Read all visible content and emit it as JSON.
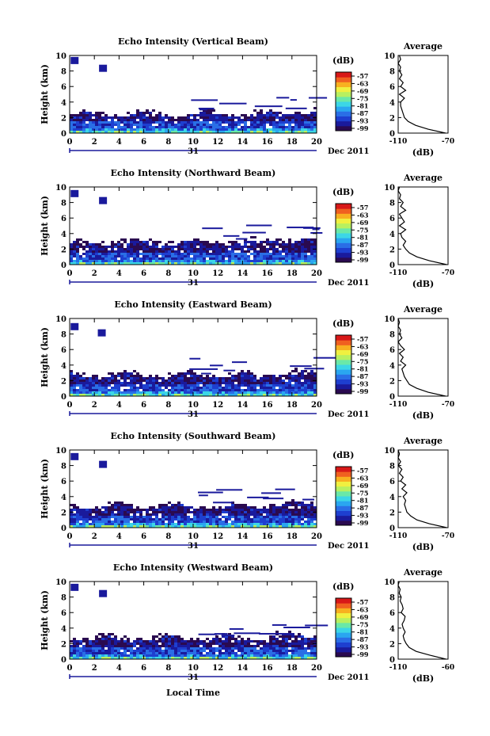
{
  "figure": {
    "xlabel": "Local Time",
    "date_label": "Dec 2011",
    "day_label": "31"
  },
  "chart_data": [
    {
      "type": "heatmap",
      "title": "Echo Intensity (Vertical Beam)",
      "xlabel": "",
      "ylabel": "Height (km)",
      "xlim": [
        0,
        20
      ],
      "ylim": [
        0,
        10
      ],
      "xticks": [
        0,
        2,
        4,
        6,
        8,
        10,
        12,
        14,
        16,
        18,
        20
      ],
      "yticks": [
        0,
        2,
        4,
        6,
        8,
        10
      ],
      "colorbar": {
        "label": "(dB)",
        "ticks": [
          "-57",
          "-63",
          "-69",
          "-75",
          "-81",
          "-87",
          "-93",
          "-99"
        ],
        "range": [
          -99,
          -57
        ]
      },
      "cloud_top_km": 2.5,
      "high_patches": [
        {
          "x": 0.4,
          "y": 9.4
        },
        {
          "x": 2.7,
          "y": 8.4
        }
      ],
      "average_profile": {
        "title": "Average",
        "xlabel": "(dB)",
        "xlim": [
          -110,
          -70
        ],
        "xticks": [
          "-110",
          "-70"
        ],
        "height_km": [
          0,
          0.5,
          1,
          1.5,
          2,
          2.5,
          3,
          3.5,
          4,
          4.5,
          5,
          5.5,
          6,
          6.5,
          7,
          7.5,
          8,
          8.5,
          9,
          9.5,
          10
        ],
        "db": [
          -72,
          -86,
          -96,
          -102,
          -105,
          -106,
          -107,
          -108,
          -108,
          -105,
          -109,
          -104,
          -108,
          -106,
          -109,
          -107,
          -109,
          -108,
          -110,
          -108,
          -109
        ]
      }
    },
    {
      "type": "heatmap",
      "title": "Echo Intensity (Northward Beam)",
      "xlabel": "",
      "ylabel": "Height (km)",
      "xlim": [
        0,
        20
      ],
      "ylim": [
        0,
        10
      ],
      "xticks": [
        0,
        2,
        4,
        6,
        8,
        10,
        12,
        14,
        16,
        18,
        20
      ],
      "yticks": [
        0,
        2,
        4,
        6,
        8,
        10
      ],
      "colorbar": {
        "label": "(dB)",
        "ticks": [
          "-57",
          "-63",
          "-69",
          "-75",
          "-81",
          "-87",
          "-93",
          "-99"
        ],
        "range": [
          -99,
          -57
        ]
      },
      "cloud_top_km": 3.0,
      "high_patches": [
        {
          "x": 0.4,
          "y": 9.2
        },
        {
          "x": 2.7,
          "y": 8.3
        }
      ],
      "average_profile": {
        "title": "Average",
        "xlabel": "(dB)",
        "xlim": [
          -110,
          -70
        ],
        "xticks": [
          "-110",
          "-70"
        ],
        "height_km": [
          0,
          0.5,
          1,
          1.5,
          2,
          2.5,
          3,
          3.5,
          4,
          4.5,
          5,
          5.5,
          6,
          6.5,
          7,
          7.5,
          8,
          8.5,
          9,
          9.5,
          10
        ],
        "db": [
          -71,
          -85,
          -95,
          -101,
          -104,
          -106,
          -104,
          -107,
          -108,
          -104,
          -109,
          -105,
          -107,
          -109,
          -104,
          -108,
          -106,
          -109,
          -108,
          -110,
          -109
        ]
      }
    },
    {
      "type": "heatmap",
      "title": "Echo Intensity (Eastward Beam)",
      "xlabel": "",
      "ylabel": "Height (km)",
      "xlim": [
        0,
        20
      ],
      "ylim": [
        0,
        10
      ],
      "xticks": [
        0,
        2,
        4,
        6,
        8,
        10,
        12,
        14,
        16,
        18,
        20
      ],
      "yticks": [
        0,
        2,
        4,
        6,
        8,
        10
      ],
      "colorbar": {
        "label": "(dB)",
        "ticks": [
          "-57",
          "-63",
          "-69",
          "-75",
          "-81",
          "-87",
          "-93",
          "-99"
        ],
        "range": [
          -99,
          -57
        ]
      },
      "cloud_top_km": 2.8,
      "high_patches": [
        {
          "x": 0.4,
          "y": 9.0
        },
        {
          "x": 2.6,
          "y": 8.2
        }
      ],
      "average_profile": {
        "title": "Average",
        "xlabel": "(dB)",
        "xlim": [
          -110,
          -70
        ],
        "xticks": [
          "-110",
          "-70"
        ],
        "height_km": [
          0,
          0.5,
          1,
          1.5,
          2,
          2.5,
          3,
          3.5,
          4,
          4.5,
          5,
          5.5,
          6,
          6.5,
          7,
          7.5,
          8,
          8.5,
          9,
          9.5,
          10
        ],
        "db": [
          -72,
          -86,
          -95,
          -101,
          -103,
          -105,
          -106,
          -107,
          -104,
          -108,
          -106,
          -109,
          -105,
          -108,
          -110,
          -107,
          -109,
          -108,
          -110,
          -109,
          -110
        ]
      }
    },
    {
      "type": "heatmap",
      "title": "Echo Intensity (Southward Beam)",
      "xlabel": "",
      "ylabel": "Height (km)",
      "xlim": [
        0,
        20
      ],
      "ylim": [
        0,
        10
      ],
      "xticks": [
        0,
        2,
        4,
        6,
        8,
        10,
        12,
        14,
        16,
        18,
        20
      ],
      "yticks": [
        0,
        2,
        4,
        6,
        8,
        10
      ],
      "colorbar": {
        "label": "(dB)",
        "ticks": [
          "-57",
          "-63",
          "-69",
          "-75",
          "-81",
          "-87",
          "-93",
          "-99"
        ],
        "range": [
          -99,
          -57
        ]
      },
      "cloud_top_km": 2.8,
      "high_patches": [
        {
          "x": 0.4,
          "y": 9.2
        },
        {
          "x": 2.7,
          "y": 8.2
        }
      ],
      "average_profile": {
        "title": "Average",
        "xlabel": "(dB)",
        "xlim": [
          -110,
          -70
        ],
        "xticks": [
          "-110",
          "-70"
        ],
        "height_km": [
          0,
          0.5,
          1,
          1.5,
          2,
          2.5,
          3,
          3.5,
          4,
          4.5,
          5,
          5.5,
          6,
          6.5,
          7,
          7.5,
          8,
          8.5,
          9,
          9.5,
          10
        ],
        "db": [
          -71,
          -85,
          -95,
          -100,
          -103,
          -104,
          -105,
          -104,
          -106,
          -103,
          -107,
          -104,
          -108,
          -106,
          -109,
          -107,
          -110,
          -108,
          -110,
          -109,
          -110
        ]
      }
    },
    {
      "type": "heatmap",
      "title": "Echo Intensity (Westward Beam)",
      "xlabel": "",
      "ylabel": "Height (km)",
      "xlim": [
        0,
        20
      ],
      "ylim": [
        0,
        10
      ],
      "xticks": [
        0,
        2,
        4,
        6,
        8,
        10,
        12,
        14,
        16,
        18,
        20
      ],
      "yticks": [
        0,
        2,
        4,
        6,
        8,
        10
      ],
      "colorbar": {
        "label": "(dB)",
        "ticks": [
          "-57",
          "-63",
          "-69",
          "-75",
          "-81",
          "-87",
          "-93",
          "-99"
        ],
        "range": [
          -99,
          -57
        ]
      },
      "cloud_top_km": 2.8,
      "high_patches": [
        {
          "x": 0.4,
          "y": 9.3
        },
        {
          "x": 2.7,
          "y": 8.5
        }
      ],
      "average_profile": {
        "title": "Average",
        "xlabel": "(dB)",
        "xlim": [
          -110,
          -60
        ],
        "xticks": [
          "-110",
          "-60"
        ],
        "height_km": [
          0,
          0.5,
          1,
          1.5,
          2,
          2.5,
          3,
          3.5,
          4,
          4.5,
          5,
          5.5,
          6,
          6.5,
          7,
          7.5,
          8,
          8.5,
          9,
          9.5,
          10
        ],
        "db": [
          -62,
          -78,
          -92,
          -99,
          -102,
          -104,
          -105,
          -103,
          -105,
          -106,
          -104,
          -103,
          -107,
          -105,
          -106,
          -108,
          -107,
          -109,
          -108,
          -110,
          -109
        ]
      }
    }
  ],
  "colors": {
    "scale": [
      "#2a0a50",
      "#1a1a9c",
      "#1e3fd0",
      "#2a6ee6",
      "#2aa6f0",
      "#3cd6e6",
      "#6ae8a8",
      "#b8f060",
      "#f0f040",
      "#f8b020",
      "#f06020",
      "#d81818"
    ]
  }
}
